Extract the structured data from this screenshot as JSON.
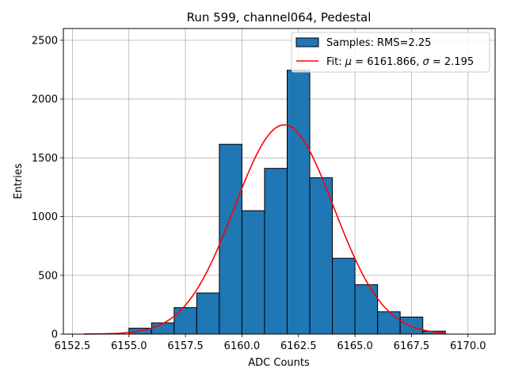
{
  "chart_data": {
    "type": "bar",
    "title": "Run 599, channel064, Pedestal",
    "xlabel": "ADC Counts",
    "ylabel": "Entries",
    "xlim": [
      6152.1,
      6171.2
    ],
    "ylim": [
      0,
      2600
    ],
    "grid": true,
    "legend_position": "top-right",
    "x_ticks": [
      6152.5,
      6155.0,
      6157.5,
      6160.0,
      6162.5,
      6165.0,
      6167.5,
      6170.0
    ],
    "x_tick_labels": [
      "6152.5",
      "6155.0",
      "6157.5",
      "6160.0",
      "6162.5",
      "6165.0",
      "6167.5",
      "6170.0"
    ],
    "y_ticks": [
      0,
      500,
      1000,
      1500,
      2000,
      2500
    ],
    "y_tick_labels": [
      "0",
      "500",
      "1000",
      "1500",
      "2000",
      "2500"
    ],
    "histogram": {
      "legend_label": "Samples: RMS=2.25",
      "color": "#1f77b4",
      "edge_color": "#000000",
      "bin_edges": [
        6155,
        6156,
        6157,
        6158,
        6159,
        6160,
        6161,
        6162,
        6163,
        6164,
        6165,
        6166,
        6167,
        6168,
        6169
      ],
      "counts": [
        50,
        95,
        225,
        350,
        1615,
        1050,
        1410,
        2245,
        1330,
        645,
        420,
        190,
        145,
        25
      ]
    },
    "fit": {
      "legend_prefix": "Fit: ",
      "legend_mu_symbol": "μ",
      "legend_mu_text": " = 6161.866, ",
      "legend_sigma_symbol": "σ",
      "legend_sigma_text": " = 2.195",
      "mu": 6161.866,
      "sigma": 2.195,
      "amplitude": 1780,
      "x_range": [
        6153.0,
        6169.0
      ],
      "color": "#ff0000"
    }
  }
}
